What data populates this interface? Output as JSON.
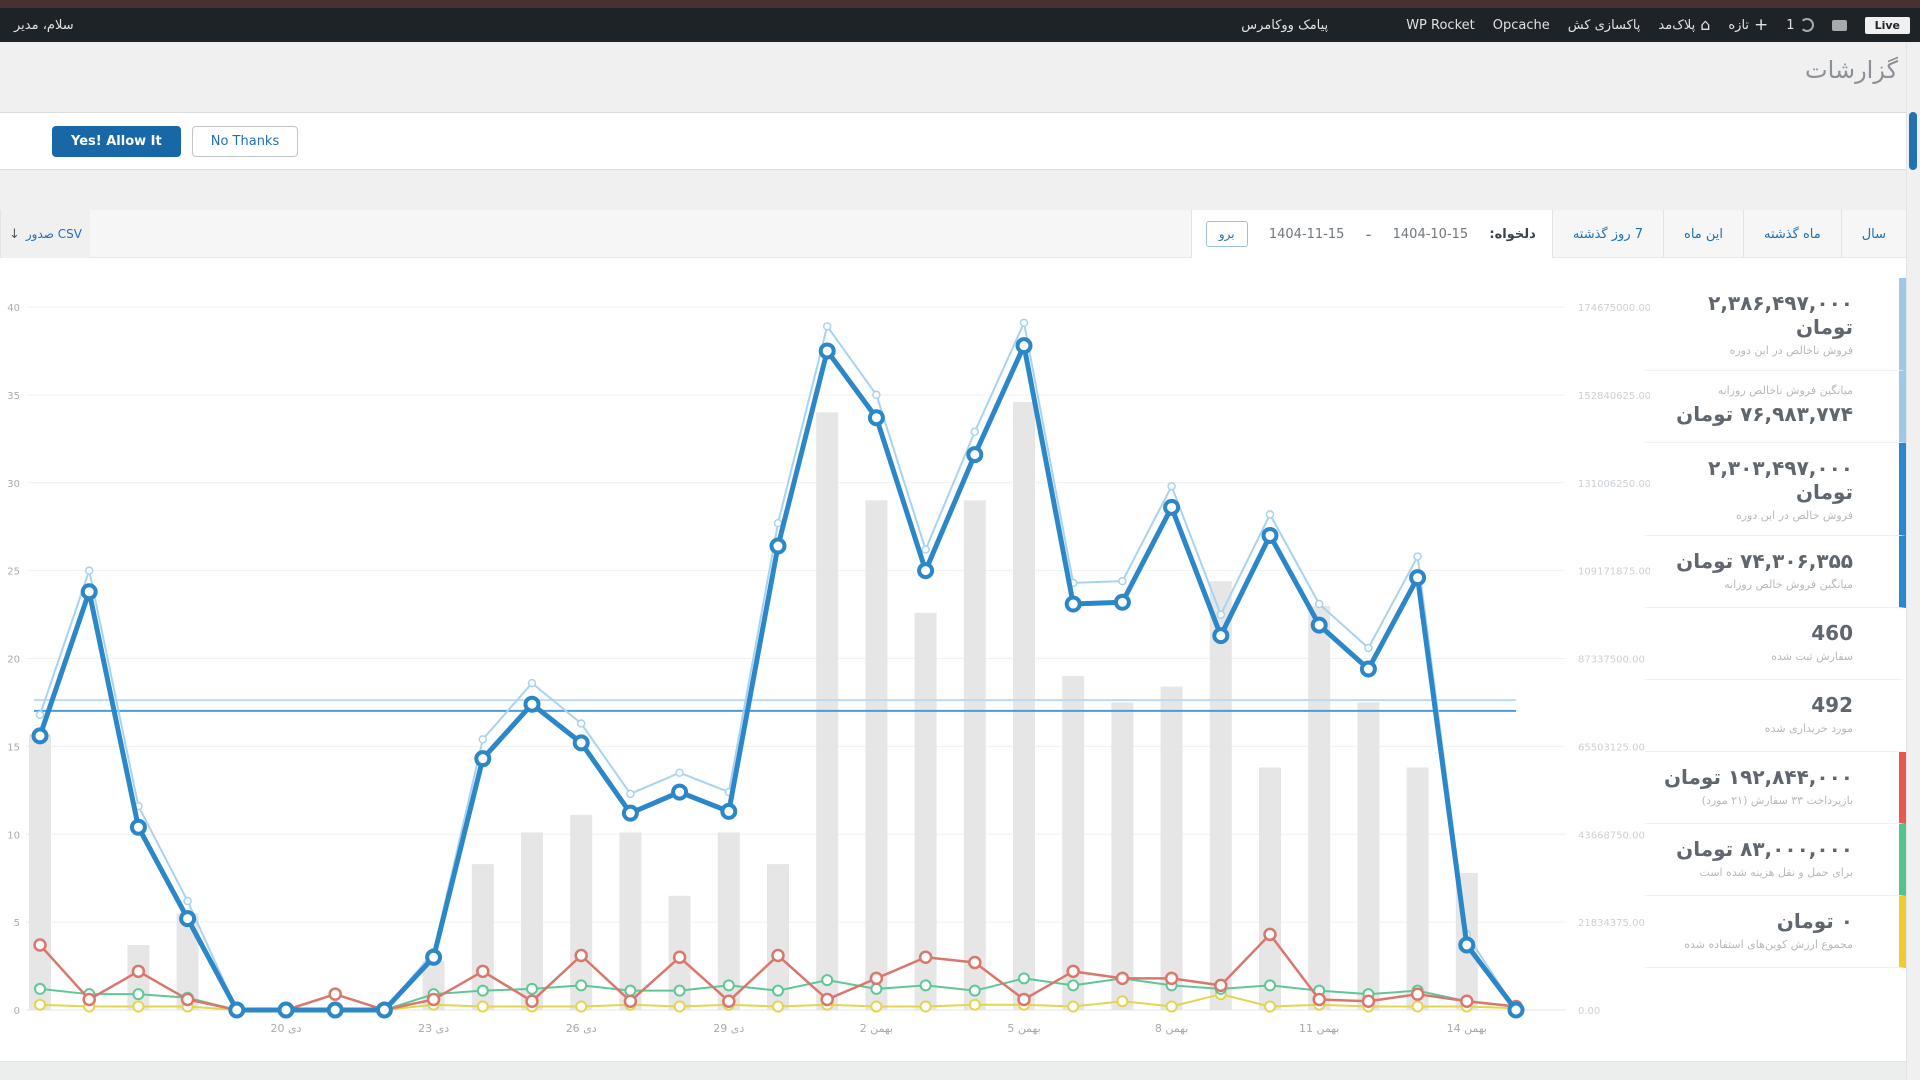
{
  "admin_bar": {
    "howdy": "سلام، مدیر",
    "live": "Live",
    "updates": "1",
    "new_item": "تازه",
    "site": "پلاک‌مد",
    "purge": "پاکسازی کش",
    "opcache": "Opcache",
    "wp_rocket": "WP Rocket",
    "sms": "پیامک ووکامرس"
  },
  "page": {
    "title": "گزارشات"
  },
  "notice": {
    "decline": "No Thanks",
    "accept": "Yes! Allow It"
  },
  "toolbar": {
    "export_csv": "صدور CSV",
    "csv_arrow": "↓",
    "tabs": [
      "سال",
      "ماه گذشته",
      "این ماه",
      "7 روز گذشته"
    ],
    "custom_label": "دلخواه:",
    "date_from": "1404-10-15",
    "date_dash": "-",
    "date_to": "1404-11-15",
    "go": "برو"
  },
  "sidebar": {
    "items": [
      {
        "value": "۲,۳۸۶,۴۹۷,۰۰۰ تومان",
        "label": "فروش ناخالص در این دوره",
        "accent": "#9ec9e6",
        "label_position": "below"
      },
      {
        "value": "۷۶,۹۸۳,۷۷۴ تومان",
        "label": "میانگین فروش ناخالص روزانه",
        "accent": "#9ec9e6",
        "label_position": "above"
      },
      {
        "value": "۲,۳۰۳,۴۹۷,۰۰۰ تومان",
        "label": "فروش خالص در این دوره",
        "accent": "#2d87c8",
        "label_position": "below"
      },
      {
        "value": "۷۴,۳۰۶,۳۵۵ تومان",
        "label": "میانگین فروش خالص روزانه",
        "accent": "#2d87c8",
        "label_position": "below"
      },
      {
        "value": "460",
        "label": "سفارش ثبت شده",
        "accent": "transparent",
        "label_position": "below"
      },
      {
        "value": "492",
        "label": "مورد خریداری شده",
        "accent": "transparent",
        "label_position": "below"
      },
      {
        "value": "۱۹۲,۸۴۴,۰۰۰ تومان",
        "label": "بازپرداخت ۳۳ سفارش (۲۱ مورد)",
        "accent": "#e35b4f",
        "label_position": "below"
      },
      {
        "value": "۸۳,۰۰۰,۰۰۰ تومان",
        "label": "برای حمل و نقل هزینه شده است",
        "accent": "#55c28b",
        "label_position": "below"
      },
      {
        "value": "۰ تومان",
        "label": "مجموع ارزش کوپن‌های استفاده شده",
        "accent": "#eecb2e",
        "label_position": "below"
      }
    ]
  },
  "chart_data": {
    "type": "mixed",
    "title": "",
    "xlabel": "",
    "ylabel": "",
    "x": {
      "days": 31,
      "start_date": "1404-10-15",
      "end_date": "1404-11-15",
      "tick_labels": [
        {
          "day": 5,
          "label": "20 دی"
        },
        {
          "day": 8,
          "label": "23 دی"
        },
        {
          "day": 11,
          "label": "26 دی"
        },
        {
          "day": 14,
          "label": "29 دی"
        },
        {
          "day": 17,
          "label": "2 بهمن"
        },
        {
          "day": 20,
          "label": "5 بهمن"
        },
        {
          "day": 23,
          "label": "8 بهمن"
        },
        {
          "day": 26,
          "label": "11 بهمن"
        },
        {
          "day": 29,
          "label": "14 بهمن"
        }
      ]
    },
    "y_left": {
      "ticks": [
        40,
        35,
        30,
        25,
        20,
        15,
        10,
        5,
        0
      ],
      "max": 42,
      "grid": true
    },
    "y_right": {
      "tick_labels": [
        "174675000.00",
        "152840625.00",
        "131006250.00",
        "109171875.00",
        "87337500.00",
        "65503125.00",
        "43668750.00",
        "21834375.00",
        "0.00"
      ]
    },
    "average_lines": [
      {
        "name": "gross-daily-average",
        "money": 76983774,
        "units": 17.63,
        "color": "#b9dbf3"
      },
      {
        "name": "net-daily-average",
        "money": 74306355,
        "units": 17.02,
        "color": "#4d9bd4"
      }
    ],
    "series": [
      {
        "name": "items-sold-bars",
        "type": "bar",
        "color": "#e3e3e3",
        "values": [
          15.7,
          0,
          3.7,
          5.5,
          0,
          0,
          0,
          0,
          2.8,
          8.3,
          10.1,
          11.1,
          10.1,
          6.5,
          10.1,
          8.3,
          34,
          29,
          22.6,
          29,
          34.6,
          19,
          17.5,
          18.4,
          24.4,
          13.8,
          23,
          17.5,
          13.8,
          7.8,
          0
        ]
      },
      {
        "name": "coupon-amounts-line",
        "type": "line",
        "color": "#e3d54e",
        "width": 2,
        "marker": 5,
        "marker_stroke": 2,
        "values": [
          0.3,
          0.2,
          0.2,
          0.2,
          0,
          0,
          0,
          0,
          0.3,
          0.2,
          0.2,
          0.2,
          0.3,
          0.2,
          0.3,
          0.2,
          0.3,
          0.2,
          0.2,
          0.3,
          0.3,
          0.2,
          0.5,
          0.2,
          0.9,
          0.2,
          0.3,
          0.2,
          0.2,
          0.2,
          0.1
        ]
      },
      {
        "name": "shipping-amounts-line",
        "type": "line",
        "color": "#5fc796",
        "width": 2,
        "marker": 5,
        "marker_stroke": 2,
        "values": [
          1.2,
          0.9,
          0.9,
          0.7,
          0,
          0,
          0,
          0,
          0.9,
          1.1,
          1.2,
          1.4,
          1.1,
          1.1,
          1.4,
          1.1,
          1.7,
          1.2,
          1.4,
          1.1,
          1.8,
          1.4,
          1.8,
          1.4,
          1.2,
          1.4,
          1.1,
          0.9,
          1.1,
          0.5,
          0.2
        ]
      },
      {
        "name": "refund-amounts-line",
        "type": "line",
        "color": "#d9776c",
        "width": 2.5,
        "marker": 5.5,
        "marker_stroke": 2.5,
        "values": [
          3.7,
          0.6,
          2.2,
          0.6,
          0,
          0,
          0.9,
          0,
          0.6,
          2.2,
          0.5,
          3.1,
          0.5,
          3,
          0.5,
          3.1,
          0.6,
          1.8,
          3,
          2.7,
          0.6,
          2.2,
          1.8,
          1.8,
          1.4,
          4.3,
          0.6,
          0.5,
          0.9,
          0.5,
          0.2
        ]
      },
      {
        "name": "gross-sales-line",
        "type": "line",
        "color": "#a8d3f0",
        "width": 2,
        "marker": 3.5,
        "marker_stroke": 1.5,
        "values": [
          16.8,
          25,
          11.6,
          6.2,
          0,
          0,
          0,
          0,
          3.3,
          15.4,
          18.6,
          16.3,
          12.3,
          13.5,
          12.4,
          27.7,
          38.9,
          35,
          26.2,
          32.9,
          39.1,
          24.3,
          24.4,
          29.8,
          22.5,
          28.2,
          23.1,
          20.6,
          25.8,
          4.3,
          0
        ]
      },
      {
        "name": "net-sales-line",
        "type": "line",
        "color": "#2b87c8",
        "width": 5,
        "marker": 6.5,
        "marker_stroke": 4,
        "values": [
          15.6,
          23.8,
          10.4,
          5.2,
          0,
          0,
          0,
          0,
          3,
          14.3,
          17.4,
          15.2,
          11.2,
          12.4,
          11.3,
          26.4,
          37.5,
          33.7,
          25,
          31.6,
          37.8,
          23.1,
          23.2,
          28.6,
          21.3,
          27,
          21.9,
          19.4,
          24.6,
          3.7,
          0
        ]
      }
    ]
  }
}
